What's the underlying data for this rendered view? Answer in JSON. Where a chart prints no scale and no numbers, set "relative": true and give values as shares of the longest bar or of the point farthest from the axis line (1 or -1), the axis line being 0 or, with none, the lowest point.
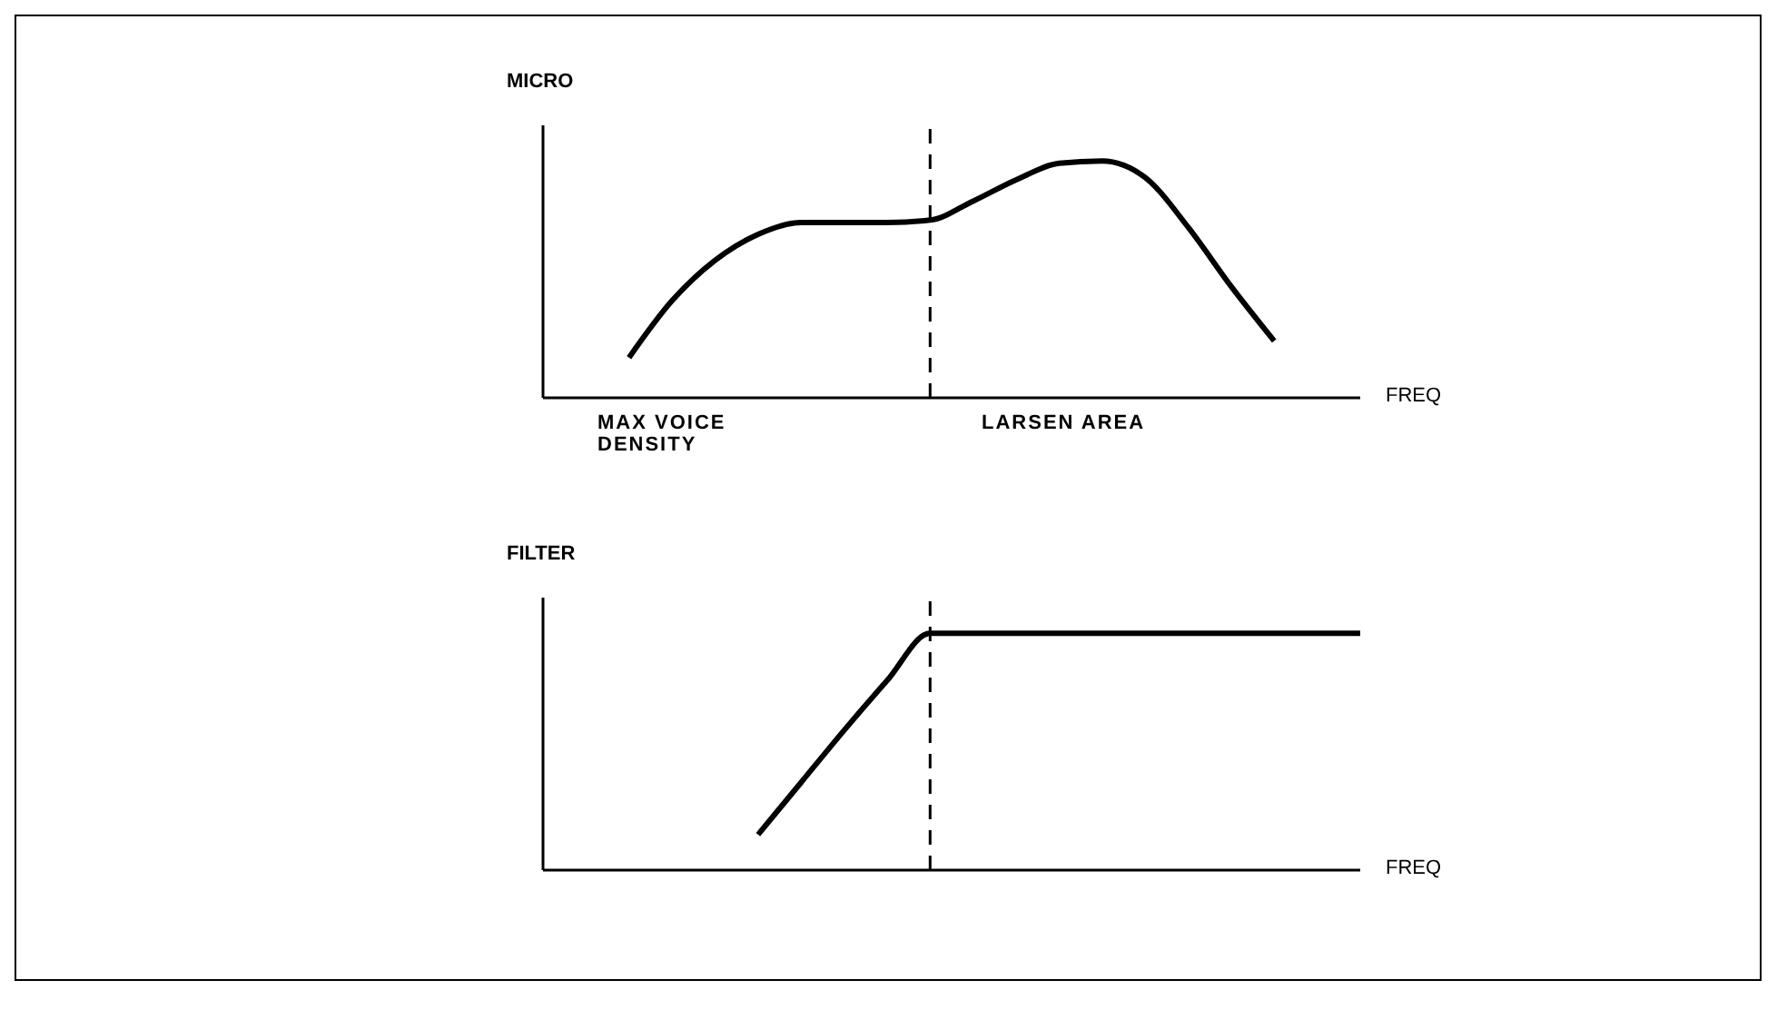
{
  "chart_data": [
    {
      "type": "line",
      "relative": true,
      "ylabel": "MICRO",
      "xlabel": "FREQ",
      "categories": [
        null,
        null,
        null,
        null,
        null,
        null,
        null,
        null,
        null,
        null,
        null,
        null,
        null,
        null,
        null,
        null,
        null,
        null,
        null,
        null
      ],
      "series": [
        {
          "color": "#000000",
          "values": [
            null,
            null,
            0.17,
            0.41,
            0.58,
            0.69,
            0.74,
            0.74,
            0.74,
            0.75,
            0.83,
            0.92,
            0.99,
            1,
            0.93,
            0.72,
            0.47,
            0.24,
            null,
            null
          ]
        }
      ],
      "annotations": [
        "MAX VOICE DENSITY",
        "LARSEN AREA"
      ],
      "grid": false,
      "legend": false,
      "marker": "none",
      "line_style": "solid"
    },
    {
      "type": "line",
      "relative": true,
      "ylabel": "FILTER",
      "xlabel": "FREQ",
      "categories": [
        null,
        null,
        null,
        null,
        null,
        null,
        null,
        null,
        null,
        null,
        null,
        null,
        null,
        null,
        null,
        null,
        null,
        null,
        null,
        null
      ],
      "series": [
        {
          "color": "#000000",
          "values": [
            null,
            null,
            null,
            null,
            null,
            0.15,
            0.37,
            0.59,
            0.8,
            1,
            1,
            1,
            1,
            1,
            1,
            1,
            1,
            1,
            1,
            1
          ]
        }
      ],
      "grid": false,
      "legend": false,
      "marker": "none",
      "line_style": "solid"
    }
  ]
}
